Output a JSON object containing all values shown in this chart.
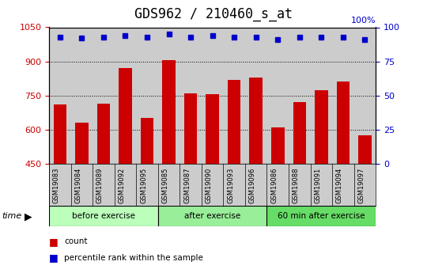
{
  "title": "GDS962 / 210460_s_at",
  "samples": [
    "GSM19083",
    "GSM19084",
    "GSM19089",
    "GSM19092",
    "GSM19095",
    "GSM19085",
    "GSM19087",
    "GSM19090",
    "GSM19093",
    "GSM19096",
    "GSM19086",
    "GSM19088",
    "GSM19091",
    "GSM19094",
    "GSM19097"
  ],
  "counts": [
    710,
    630,
    715,
    870,
    650,
    905,
    760,
    755,
    820,
    830,
    610,
    720,
    775,
    810,
    575
  ],
  "percentile": [
    93,
    92,
    93,
    94,
    93,
    95,
    93,
    94,
    93,
    93,
    91,
    93,
    93,
    93,
    91
  ],
  "groups": [
    {
      "label": "before exercise",
      "start": 0,
      "end": 5
    },
    {
      "label": "after exercise",
      "start": 5,
      "end": 10
    },
    {
      "label": "60 min after exercise",
      "start": 10,
      "end": 15
    }
  ],
  "group_colors": [
    "#bbffbb",
    "#99ee99",
    "#66dd66"
  ],
  "ylim_left": [
    450,
    1050
  ],
  "ylim_right": [
    0,
    100
  ],
  "yticks_left": [
    450,
    600,
    750,
    900,
    1050
  ],
  "yticks_right": [
    0,
    25,
    50,
    75,
    100
  ],
  "bar_color": "#cc0000",
  "dot_color": "#0000cc",
  "background_color": "#cccccc",
  "title_fontsize": 12,
  "axis_color_left": "#cc0000",
  "axis_color_right": "#0000cc",
  "legend_bar_label": "count",
  "legend_dot_label": "percentile rank within the sample",
  "time_label": "time"
}
